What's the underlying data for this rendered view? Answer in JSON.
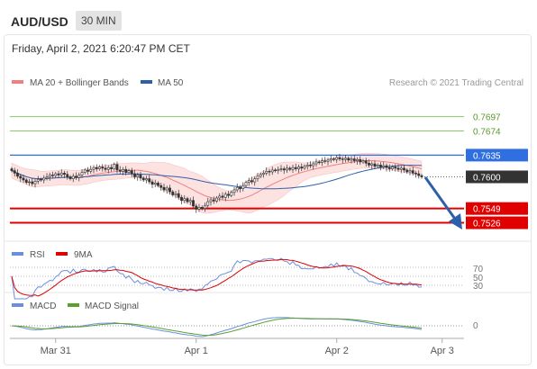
{
  "header": {
    "pair": "AUD/USD",
    "timeframe": "30 MIN",
    "datetime": "Friday, April 2, 2021 6:20:47 PM CET"
  },
  "legend": {
    "ma20_bollinger": "MA 20 + Bollinger Bands",
    "ma50": "MA 50",
    "credit": "Research © 2021 Trading Central",
    "rsi": "RSI",
    "rsi_ma": "9MA",
    "macd": "MACD",
    "macd_signal": "MACD Signal"
  },
  "colors": {
    "ma20": "#f08080",
    "band_fill": "#fde2e2",
    "ma50": "#2f5fa8",
    "candle": "#333333",
    "resistance_green": "#8cc86a",
    "resistance_text": "#5a9a2a",
    "blue_level": "#2f6fe0",
    "support_red": "#e00000",
    "current_price_bg": "#333333",
    "arrow": "#2f5fa8",
    "rsi": "#6a8fe0",
    "rsi_ma": "#e00000",
    "macd": "#6a8fe0",
    "macd_signal": "#5aa02c"
  },
  "chart_data": {
    "type": "candlestick",
    "price_axis_ticks": [
      "0.7697",
      "0.7674",
      "0.7635",
      "0.7600",
      "0.7549",
      "0.7526"
    ],
    "levels": [
      {
        "value": 0.7697,
        "label": "0.7697",
        "kind": "resistance"
      },
      {
        "value": 0.7674,
        "label": "0.7674",
        "kind": "resistance"
      },
      {
        "value": 0.7635,
        "label": "0.7635",
        "kind": "pivot"
      },
      {
        "value": 0.76,
        "label": "0.7600",
        "kind": "last"
      },
      {
        "value": 0.7549,
        "label": "0.7549",
        "kind": "support"
      },
      {
        "value": 0.7526,
        "label": "0.7526",
        "kind": "support"
      }
    ],
    "ylim": [
      0.7505,
      0.774
    ],
    "x_ticks": [
      "Mar 31",
      "Apr 1",
      "Apr 2",
      "Apr 3"
    ],
    "x_tick_index": [
      15,
      63,
      111,
      147
    ],
    "close": [
      0.761,
      0.7606,
      0.7601,
      0.7598,
      0.7595,
      0.7591,
      0.7592,
      0.7589,
      0.7593,
      0.7596,
      0.7595,
      0.7598,
      0.76,
      0.7603,
      0.7602,
      0.7605,
      0.7603,
      0.7606,
      0.7604,
      0.76,
      0.7597,
      0.7601,
      0.7599,
      0.7603,
      0.7607,
      0.7611,
      0.7609,
      0.7612,
      0.7615,
      0.7613,
      0.7616,
      0.7614,
      0.7612,
      0.7615,
      0.7613,
      0.762,
      0.7611,
      0.7609,
      0.7612,
      0.7607,
      0.761,
      0.7605,
      0.76,
      0.7603,
      0.7598,
      0.7595,
      0.7597,
      0.7592,
      0.7588,
      0.759,
      0.7586,
      0.7583,
      0.7579,
      0.7582,
      0.7576,
      0.7571,
      0.7573,
      0.7567,
      0.7562,
      0.7565,
      0.756,
      0.7562,
      0.7553,
      0.7548,
      0.7551,
      0.7549,
      0.7554,
      0.756,
      0.7563,
      0.7561,
      0.7566,
      0.7569,
      0.7567,
      0.7572,
      0.757,
      0.7575,
      0.7579,
      0.7583,
      0.7581,
      0.7586,
      0.7591,
      0.7594,
      0.7592,
      0.7597,
      0.7601,
      0.7604,
      0.7606,
      0.7609,
      0.7608,
      0.7611,
      0.761,
      0.7612,
      0.7613,
      0.7611,
      0.7614,
      0.7612,
      0.7615,
      0.7613,
      0.7616,
      0.7614,
      0.7617,
      0.7619,
      0.7618,
      0.7621,
      0.7624,
      0.7623,
      0.7626,
      0.7625,
      0.7627,
      0.7629,
      0.7628,
      0.7631,
      0.7629,
      0.7628,
      0.763,
      0.7627,
      0.7629,
      0.7626,
      0.7628,
      0.7624,
      0.7626,
      0.7622,
      0.7619,
      0.7621,
      0.7617,
      0.7619,
      0.7616,
      0.7618,
      0.7615,
      0.7613,
      0.7616,
      0.7614,
      0.7612,
      0.7614,
      0.7611,
      0.7608,
      0.761,
      0.7606,
      0.7605,
      0.7602,
      0.76
    ],
    "rsi_axis": [
      "70",
      "50",
      "30"
    ],
    "rsi_ylim": [
      20,
      80
    ],
    "macd_axis": [
      "0"
    ]
  }
}
